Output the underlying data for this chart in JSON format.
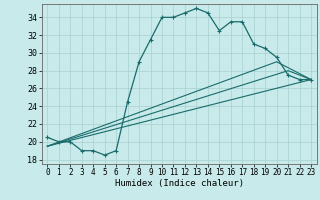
{
  "xlabel": "Humidex (Indice chaleur)",
  "xlim": [
    -0.5,
    23.5
  ],
  "ylim": [
    17.5,
    35.5
  ],
  "xticks": [
    0,
    1,
    2,
    3,
    4,
    5,
    6,
    7,
    8,
    9,
    10,
    11,
    12,
    13,
    14,
    15,
    16,
    17,
    18,
    19,
    20,
    21,
    22,
    23
  ],
  "yticks": [
    18,
    20,
    22,
    24,
    26,
    28,
    30,
    32,
    34
  ],
  "background_color": "#c8eaea",
  "grid_color": "#a8d0d0",
  "line_color": "#1a6b6b",
  "line1_x": [
    0,
    1,
    2,
    3,
    4,
    5,
    6,
    7,
    8,
    9,
    10,
    11,
    12,
    13,
    14,
    15,
    16,
    17,
    18,
    19,
    20,
    21,
    22,
    23
  ],
  "line1_y": [
    20.5,
    20.0,
    20.0,
    19.0,
    19.0,
    18.5,
    19.0,
    24.5,
    29.0,
    31.5,
    34.0,
    34.0,
    34.5,
    35.0,
    34.5,
    32.5,
    33.5,
    33.5,
    31.0,
    30.5,
    29.5,
    27.5,
    27.0,
    27.0
  ],
  "line2_x": [
    0,
    23
  ],
  "line2_y": [
    19.5,
    27.0
  ],
  "line3_x": [
    0,
    21,
    23
  ],
  "line3_y": [
    19.5,
    28.0,
    27.0
  ],
  "line4_x": [
    0,
    20,
    23
  ],
  "line4_y": [
    19.5,
    29.0,
    27.0
  ]
}
